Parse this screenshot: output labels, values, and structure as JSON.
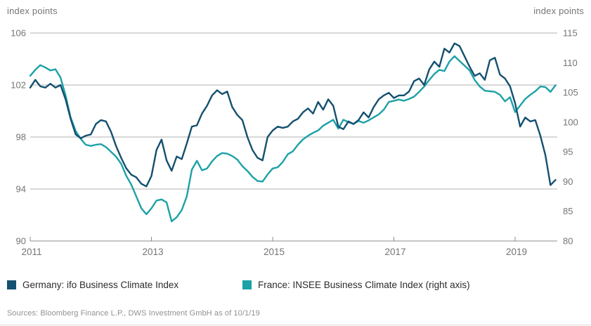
{
  "header": {
    "left_axis_label": "index points",
    "right_axis_label": "index points"
  },
  "source_note": "Sources: Bloomberg Finance L.P., DWS Investment GmbH as of 10/1/19",
  "chart_data": {
    "type": "line",
    "title": "",
    "x": {
      "frequency": "monthly",
      "start": "2011-01",
      "end": "2019-09",
      "tick_labels": [
        "2011",
        "2013",
        "2015",
        "2017",
        "2019"
      ]
    },
    "left_axis": {
      "label": "index points",
      "range": [
        90,
        106
      ],
      "ticks": [
        106,
        102,
        98,
        94,
        90
      ]
    },
    "right_axis": {
      "label": "index points",
      "range": [
        80,
        115
      ],
      "ticks": [
        115,
        110,
        105,
        100,
        95,
        90,
        85,
        80
      ]
    },
    "grid": "horizontal",
    "legend_position": "bottom",
    "colors": {
      "germany": "#14506f",
      "france": "#1ba1a6",
      "gridline": "#b0b0b0",
      "axisline": "#8c8c8c"
    },
    "series": [
      {
        "name": "Germany: ifo Business Climate Index",
        "axis": "left",
        "color": "#14506f",
        "values": [
          101.8,
          102.4,
          101.9,
          101.8,
          102.1,
          101.8,
          102.0,
          100.9,
          99.4,
          98.2,
          97.9,
          98.1,
          98.2,
          99.0,
          99.3,
          99.2,
          98.4,
          97.3,
          96.4,
          95.6,
          95.1,
          94.9,
          94.4,
          94.2,
          95.0,
          97.0,
          97.8,
          96.2,
          95.4,
          96.5,
          96.3,
          97.5,
          98.8,
          98.9,
          99.8,
          100.4,
          101.2,
          101.6,
          101.3,
          101.5,
          100.3,
          99.7,
          99.3,
          98.0,
          97.0,
          96.4,
          96.2,
          98.0,
          98.5,
          98.8,
          98.7,
          98.8,
          99.2,
          99.4,
          99.9,
          100.2,
          99.8,
          100.7,
          100.1,
          100.9,
          100.4,
          98.8,
          98.6,
          99.2,
          99.0,
          99.3,
          99.9,
          99.5,
          100.3,
          100.9,
          101.2,
          101.4,
          101.0,
          101.2,
          101.2,
          101.5,
          102.3,
          102.5,
          102.0,
          103.2,
          103.8,
          103.4,
          104.8,
          104.5,
          105.2,
          105.0,
          104.2,
          103.4,
          102.7,
          102.9,
          102.4,
          103.9,
          104.1,
          102.8,
          102.5,
          101.9,
          100.6,
          98.8,
          99.5,
          99.2,
          99.3,
          98.1,
          96.6,
          94.3,
          94.7
        ]
      },
      {
        "name": "France: INSEE Business Climate Index (right axis)",
        "axis": "right",
        "color": "#1ba1a6",
        "values": [
          107.8,
          108.8,
          109.6,
          109.2,
          108.7,
          108.9,
          107.5,
          104.5,
          100.8,
          98.5,
          97.2,
          96.2,
          96.0,
          96.2,
          96.3,
          95.8,
          95.0,
          94.2,
          93.0,
          91.0,
          89.5,
          87.5,
          85.5,
          84.5,
          85.5,
          86.8,
          87.0,
          86.5,
          83.3,
          84.0,
          85.2,
          87.5,
          92.0,
          93.5,
          91.9,
          92.2,
          93.4,
          94.3,
          94.8,
          94.7,
          94.3,
          93.7,
          92.6,
          91.8,
          90.8,
          90.1,
          90.0,
          91.2,
          92.2,
          92.4,
          93.3,
          94.6,
          95.1,
          96.2,
          97.1,
          97.7,
          98.2,
          98.6,
          99.4,
          99.9,
          100.4,
          98.9,
          100.4,
          100.0,
          99.7,
          100.2,
          99.9,
          100.3,
          100.8,
          101.3,
          102.1,
          103.4,
          103.6,
          103.8,
          103.6,
          103.9,
          104.3,
          105.1,
          106.0,
          107.1,
          108.1,
          108.8,
          108.6,
          110.2,
          111.1,
          110.3,
          109.5,
          108.7,
          107.1,
          106.0,
          105.3,
          105.2,
          105.1,
          104.6,
          103.5,
          104.2,
          101.7,
          102.8,
          103.9,
          104.6,
          105.2,
          106.0,
          105.9,
          105.1,
          106.2
        ]
      }
    ]
  }
}
